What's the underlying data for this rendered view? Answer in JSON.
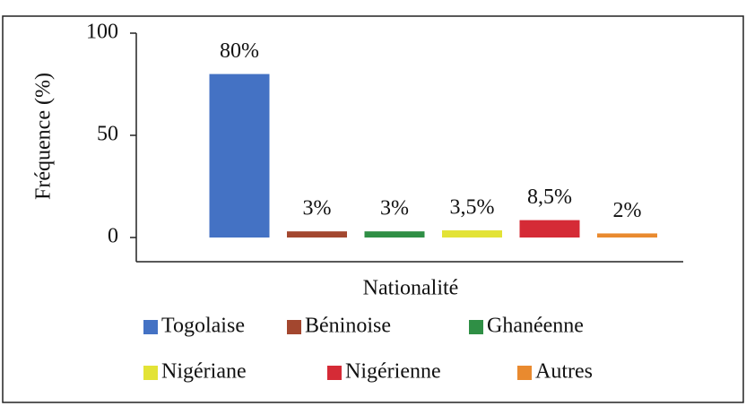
{
  "chart_data": {
    "type": "bar",
    "categories": [
      "Togolaise",
      "Béninoise",
      "Ghanéenne",
      "Nigériane",
      "Nigérienne",
      "Autres"
    ],
    "values": [
      80,
      3,
      3,
      3.5,
      8.5,
      2
    ],
    "value_labels": [
      "80%",
      "3%",
      "3%",
      "3,5%",
      "8,5%",
      "2%"
    ],
    "colors": [
      "#4472c4",
      "#a3472f",
      "#2f8f45",
      "#e3e336",
      "#d52b36",
      "#e98a2f"
    ],
    "xlabel": "Nationalité",
    "ylabel": "Fréquence (%)",
    "ylim": [
      0,
      100
    ],
    "yticks": [
      0,
      50,
      100
    ],
    "legend": "bottom"
  }
}
